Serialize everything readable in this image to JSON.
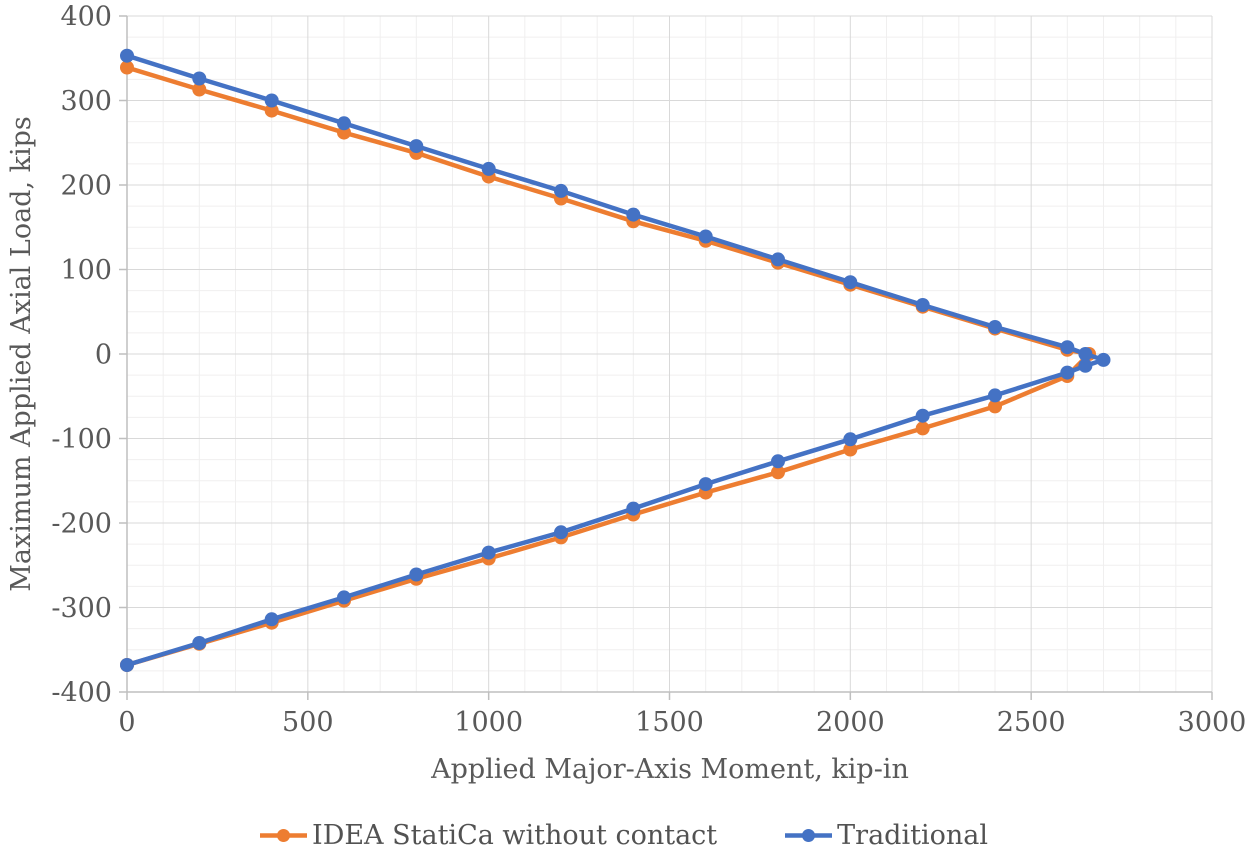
{
  "chart_data": {
    "type": "line",
    "title": "",
    "xlabel": "Applied Major-Axis Moment, kip-in",
    "ylabel": "Maximum Applied Axial Load, kips",
    "xlim": [
      0,
      3000
    ],
    "ylim": [
      -400,
      400
    ],
    "x_ticks": [
      0,
      500,
      1000,
      1500,
      2000,
      2500,
      3000
    ],
    "y_ticks": [
      400,
      300,
      200,
      100,
      0,
      -100,
      -200,
      -300,
      -400
    ],
    "x_minor_step": 100,
    "y_minor_step": 25,
    "grid": {
      "major": true,
      "minor": true
    },
    "legend_position": "bottom",
    "colors": {
      "background": "#FFFFFF",
      "grid_major": "#D9D9D9",
      "grid_minor": "#F0EFEF",
      "axis": "#BFBFBF",
      "tick_text": "#595959",
      "title_text": "#595959"
    },
    "series": [
      {
        "name": "IDEA StatiCa without contact",
        "color": "#ED7D31",
        "marker": "circle",
        "points": [
          [
            0,
            339
          ],
          [
            200,
            313
          ],
          [
            400,
            288
          ],
          [
            600,
            262
          ],
          [
            800,
            238
          ],
          [
            1000,
            210
          ],
          [
            1200,
            184
          ],
          [
            1400,
            157
          ],
          [
            1600,
            134
          ],
          [
            1800,
            108
          ],
          [
            2000,
            82
          ],
          [
            2200,
            56
          ],
          [
            2400,
            30
          ],
          [
            2600,
            5
          ],
          [
            2660,
            0
          ],
          [
            2600,
            -26
          ],
          [
            2400,
            -62
          ],
          [
            2200,
            -88
          ],
          [
            2000,
            -113
          ],
          [
            1800,
            -140
          ],
          [
            1600,
            -164
          ],
          [
            1400,
            -190
          ],
          [
            1200,
            -217
          ],
          [
            1000,
            -242
          ],
          [
            800,
            -266
          ],
          [
            600,
            -292
          ],
          [
            400,
            -318
          ],
          [
            200,
            -343
          ],
          [
            0,
            -368
          ]
        ]
      },
      {
        "name": "Traditional",
        "color": "#4472C4",
        "marker": "circle",
        "points": [
          [
            0,
            353
          ],
          [
            200,
            326
          ],
          [
            400,
            300
          ],
          [
            600,
            273
          ],
          [
            800,
            246
          ],
          [
            1000,
            219
          ],
          [
            1200,
            193
          ],
          [
            1400,
            165
          ],
          [
            1600,
            139
          ],
          [
            1800,
            112
          ],
          [
            2000,
            85
          ],
          [
            2200,
            58
          ],
          [
            2400,
            32
          ],
          [
            2600,
            8
          ],
          [
            2650,
            0
          ],
          [
            2700,
            -7
          ],
          [
            2650,
            -14
          ],
          [
            2600,
            -22
          ],
          [
            2400,
            -49
          ],
          [
            2200,
            -73
          ],
          [
            2000,
            -101
          ],
          [
            1800,
            -127
          ],
          [
            1600,
            -154
          ],
          [
            1400,
            -183
          ],
          [
            1200,
            -211
          ],
          [
            1000,
            -235
          ],
          [
            800,
            -261
          ],
          [
            600,
            -288
          ],
          [
            400,
            -314
          ],
          [
            200,
            -342
          ],
          [
            0,
            -368
          ]
        ]
      }
    ]
  }
}
